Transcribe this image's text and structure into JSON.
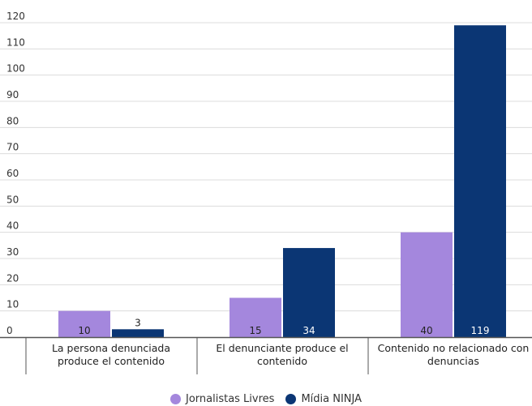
{
  "chart_data": {
    "type": "bar",
    "categories": [
      [
        "La persona denunciada",
        "produce el contenido"
      ],
      [
        "El denunciante produce el",
        "contenido"
      ],
      [
        "Contenido no relacionado con",
        "denuncias"
      ]
    ],
    "series": [
      {
        "name": "Jornalistas Livres",
        "color": "#a487dd",
        "values": [
          10,
          15,
          40
        ]
      },
      {
        "name": "Mídia NINJA",
        "color": "#0b3674",
        "values": [
          3,
          34,
          119
        ]
      }
    ],
    "ylim": [
      0,
      120
    ],
    "yticks": [
      0,
      10,
      20,
      30,
      40,
      50,
      60,
      70,
      80,
      90,
      100,
      110,
      120
    ],
    "grid": true,
    "legend_position": "bottom-center",
    "data_labels": true
  }
}
